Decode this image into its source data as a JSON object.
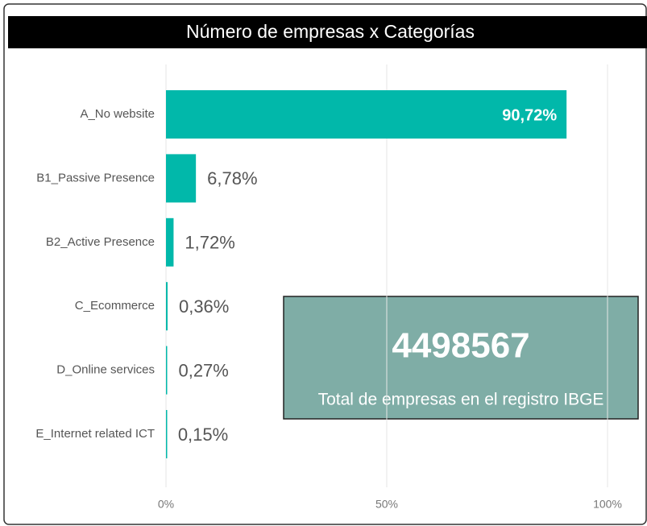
{
  "chart_data": {
    "type": "bar",
    "orientation": "horizontal",
    "title": "Número de empresas x Categorías",
    "categories": [
      "A_No website",
      "B1_Passive Presence",
      "B2_Active Presence",
      "C_Ecommerce",
      "D_Online services",
      "E_Internet related ICT"
    ],
    "values": [
      90.72,
      6.78,
      1.72,
      0.36,
      0.27,
      0.15
    ],
    "value_labels": [
      "90,72%",
      "6,78%",
      "1,72%",
      "0,36%",
      "0,27%",
      "0,15%"
    ],
    "color": "#01b8aa",
    "xlim": [
      0,
      100
    ],
    "xticks": [
      {
        "value": 0,
        "label": "0%"
      },
      {
        "value": 50,
        "label": "50%"
      },
      {
        "value": 100,
        "label": "100%"
      }
    ],
    "grid": true
  },
  "card": {
    "value": "4498567",
    "label": "Total de empresas en el registro IBGE",
    "color": "#7fada6"
  }
}
